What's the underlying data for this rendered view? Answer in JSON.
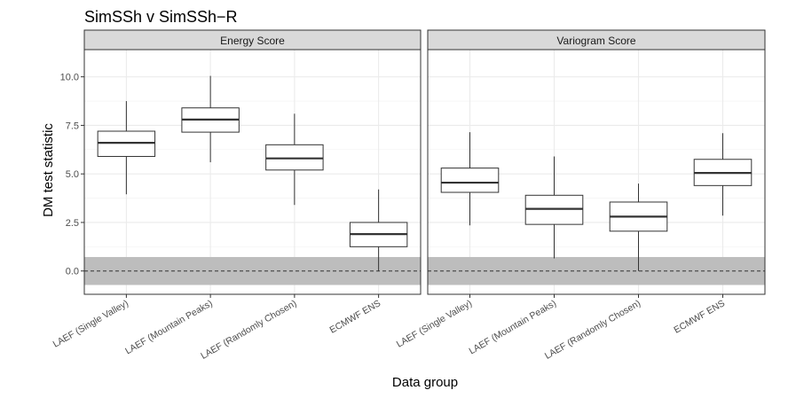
{
  "chart_data": {
    "type": "boxplot",
    "title": "SimSSh v SimSSh−R",
    "xlabel": "Data group",
    "ylabel": "DM test statistic",
    "ylim": [
      -1.2,
      11.4
    ],
    "yticks": [
      0.0,
      2.5,
      5.0,
      7.5,
      10.0
    ],
    "ytick_labels": [
      "0.0",
      "2.5",
      "5.0",
      "7.5",
      "10.0"
    ],
    "categories": [
      "LAEF (Single Valley)",
      "LAEF (Mountain Peaks)",
      "LAEF (Randomly Chosen)",
      "ECMWF ENS"
    ],
    "reference_line": 0.0,
    "shaded_band": [
      -0.72,
      0.72
    ],
    "grid": true,
    "panels": [
      {
        "name": "Energy Score",
        "boxes": [
          {
            "category": "LAEF (Single Valley)",
            "min": 3.95,
            "q1": 5.9,
            "median": 6.6,
            "q3": 7.2,
            "max": 8.75
          },
          {
            "category": "LAEF (Mountain Peaks)",
            "min": 5.6,
            "q1": 7.15,
            "median": 7.8,
            "q3": 8.4,
            "max": 10.05
          },
          {
            "category": "LAEF (Randomly Chosen)",
            "min": 3.4,
            "q1": 5.2,
            "median": 5.8,
            "q3": 6.5,
            "max": 8.1
          },
          {
            "category": "ECMWF ENS",
            "min": 0.0,
            "q1": 1.25,
            "median": 1.9,
            "q3": 2.5,
            "max": 4.2
          }
        ]
      },
      {
        "name": "Variogram Score",
        "boxes": [
          {
            "category": "LAEF (Single Valley)",
            "min": 2.35,
            "q1": 4.05,
            "median": 4.55,
            "q3": 5.3,
            "max": 7.15
          },
          {
            "category": "LAEF (Mountain Peaks)",
            "min": 0.65,
            "q1": 2.4,
            "median": 3.2,
            "q3": 3.9,
            "max": 5.9
          },
          {
            "category": "LAEF (Randomly Chosen)",
            "min": 0.0,
            "q1": 2.05,
            "median": 2.8,
            "q3": 3.55,
            "max": 4.5
          },
          {
            "category": "ECMWF ENS",
            "min": 2.85,
            "q1": 4.4,
            "median": 5.05,
            "q3": 5.75,
            "max": 7.1
          }
        ]
      }
    ]
  }
}
